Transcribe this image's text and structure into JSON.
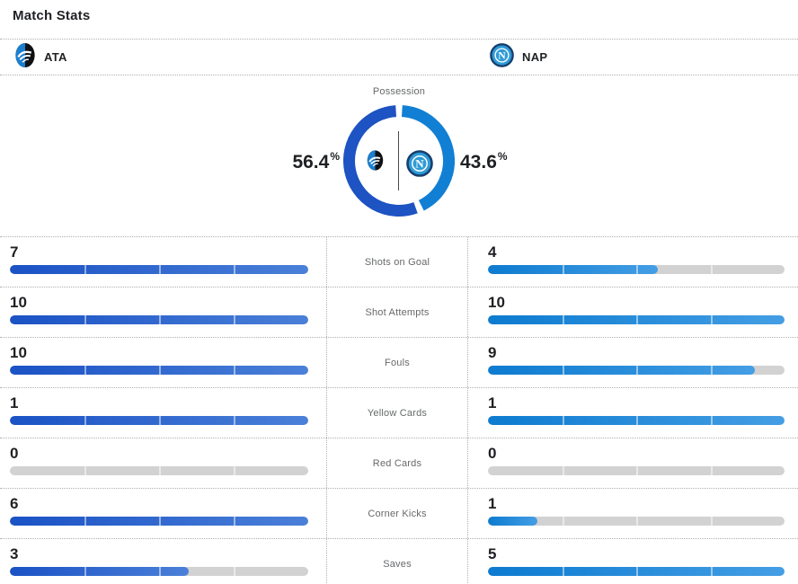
{
  "header": {
    "title": "Match Stats"
  },
  "teams": {
    "home": {
      "abbr": "ATA"
    },
    "away": {
      "abbr": "NAP"
    }
  },
  "possession": {
    "label": "Possession",
    "home_pct": "56.4",
    "away_pct": "43.6",
    "pct_symbol": "%"
  },
  "stats": [
    {
      "label": "Shots on Goal",
      "home": 7,
      "away": 4
    },
    {
      "label": "Shot Attempts",
      "home": 10,
      "away": 10
    },
    {
      "label": "Fouls",
      "home": 10,
      "away": 9
    },
    {
      "label": "Yellow Cards",
      "home": 1,
      "away": 1
    },
    {
      "label": "Red Cards",
      "home": 0,
      "away": 0
    },
    {
      "label": "Corner Kicks",
      "home": 6,
      "away": 1
    },
    {
      "label": "Saves",
      "home": 3,
      "away": 5
    }
  ],
  "colors": {
    "home_donut": "#1d53c2",
    "away_donut": "#117fd4",
    "home_bar_gradient": [
      "#1b52c5",
      "#4a80d8"
    ],
    "away_bar_gradient": [
      "#0d7bd0",
      "#449ee4"
    ],
    "bar_track": "#d2d2d2",
    "text_dark": "#1e2023",
    "text_gray": "#67696b"
  },
  "chart_data": [
    {
      "type": "pie",
      "title": "Possession",
      "labels": [
        "ATA",
        "NAP"
      ],
      "values": [
        56.4,
        43.6
      ],
      "unit": "%",
      "colors": [
        "#1d53c2",
        "#117fd4"
      ],
      "donut": true,
      "value_labels": [
        "56.4%",
        "43.6%"
      ]
    },
    {
      "type": "bar",
      "title": "Match Stats",
      "categories": [
        "Shots on Goal",
        "Shot Attempts",
        "Fouls",
        "Yellow Cards",
        "Red Cards",
        "Corner Kicks",
        "Saves"
      ],
      "series": [
        {
          "name": "ATA",
          "values": [
            7,
            10,
            10,
            1,
            0,
            6,
            3
          ]
        },
        {
          "name": "NAP",
          "values": [
            4,
            10,
            9,
            1,
            0,
            1,
            5
          ]
        }
      ],
      "scaling": "each bar fill is value divided by the max of the two values in its row",
      "legend_position": "top"
    }
  ]
}
